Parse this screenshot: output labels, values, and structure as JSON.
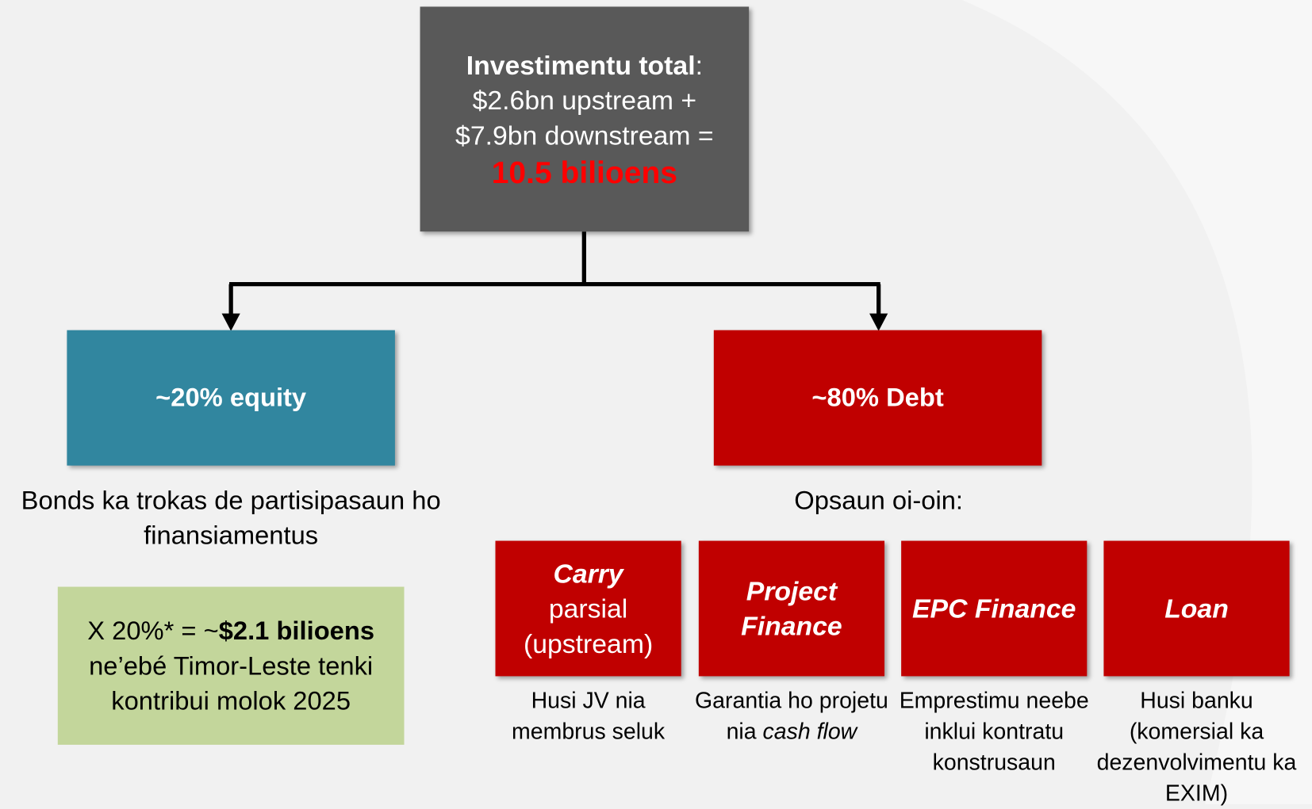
{
  "top": {
    "label": "Investimentu total",
    "colon": ":",
    "lines": [
      "$2.6bn upstream +",
      "$7.9bn downstream ="
    ],
    "total": "10.5 bilioens"
  },
  "equity": {
    "label": "~20% equity",
    "note": "Bonds ka trokas de partisipasaun ho finansiamentus",
    "callout": {
      "prefix": "X 20%* = ~",
      "amount": "$2.1 bilioens",
      "suffix": " ne’ebé Timor-Leste tenki kontribui molok 2025"
    }
  },
  "debt": {
    "label": "~80% Debt",
    "intro": "Opsaun oi-oin:",
    "options": [
      {
        "title": "Carry",
        "subtitle": "parsial (upstream)",
        "description": "Husi JV nia membrus seluk"
      },
      {
        "title": "Project Finance",
        "description": "Garantia ho projetu nia ",
        "description_italic": "cash flow"
      },
      {
        "title": "EPC Finance",
        "description": "Emprestimu neebe inklui kontratu konstrusaun"
      },
      {
        "title": "Loan",
        "description": "Husi banku (komersial ka dezenvolvimentu ka EXIM)"
      }
    ]
  }
}
